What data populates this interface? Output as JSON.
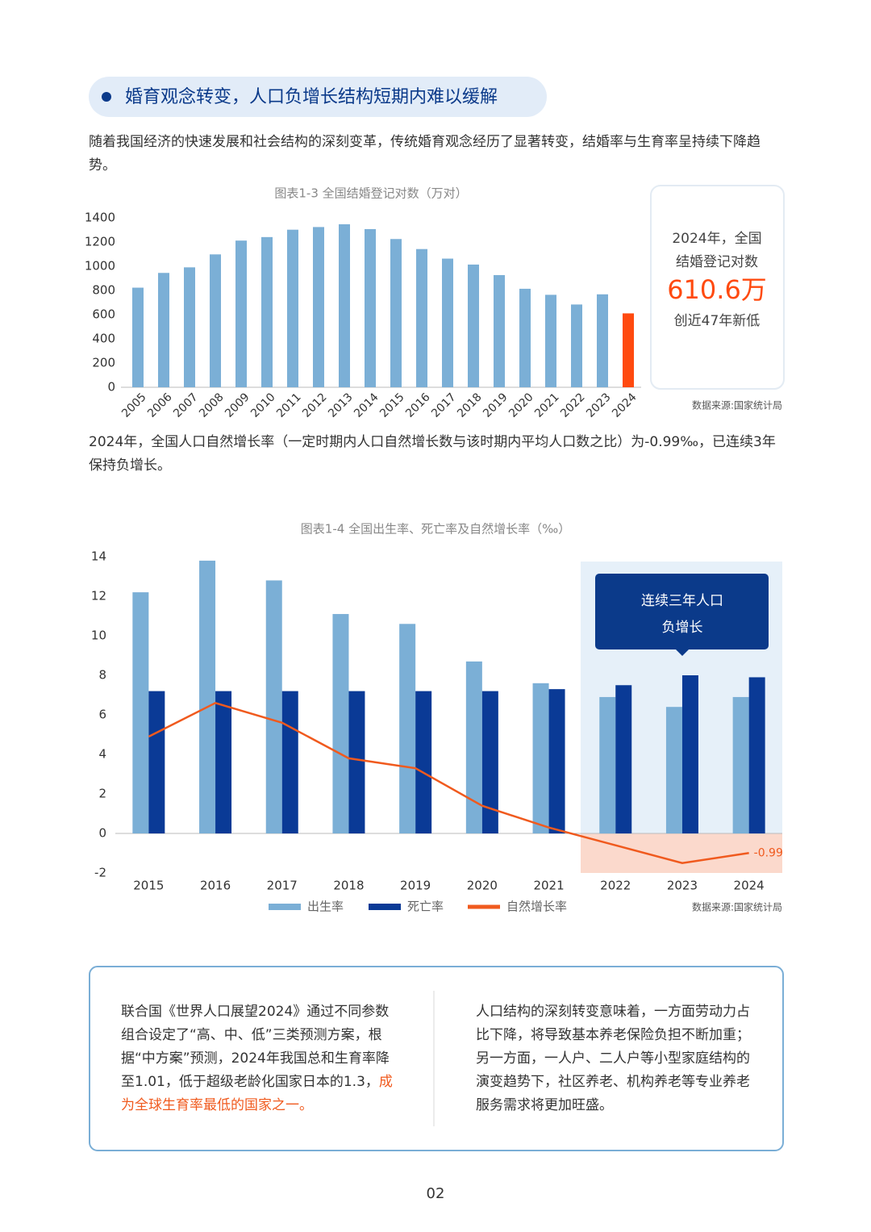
{
  "heading": "婚育观念转变，人口负增长结构短期内难以缓解",
  "intro": "随着我国经济的快速发展和社会结构的深刻变革，传统婚育观念经历了显著转变，结婚率与生育率呈持续下降趋势。",
  "chart_data": [
    {
      "type": "bar",
      "title": "图表1-3 全国结婚登记对数（万对）",
      "source": "数据来源:国家统计局",
      "categories": [
        "2005",
        "2006",
        "2007",
        "2008",
        "2009",
        "2010",
        "2011",
        "2012",
        "2013",
        "2014",
        "2015",
        "2016",
        "2017",
        "2018",
        "2019",
        "2020",
        "2021",
        "2022",
        "2023",
        "2024"
      ],
      "values": [
        823,
        945,
        991,
        1098,
        1212,
        1241,
        1302,
        1324,
        1347,
        1307,
        1225,
        1142,
        1063,
        1014,
        927,
        814,
        764,
        684,
        768,
        610.6
      ],
      "colors": [
        "#7bafd6",
        "#7bafd6",
        "#7bafd6",
        "#7bafd6",
        "#7bafd6",
        "#7bafd6",
        "#7bafd6",
        "#7bafd6",
        "#7bafd6",
        "#7bafd6",
        "#7bafd6",
        "#7bafd6",
        "#7bafd6",
        "#7bafd6",
        "#7bafd6",
        "#7bafd6",
        "#7bafd6",
        "#7bafd6",
        "#7bafd6",
        "#ff4a0f"
      ],
      "ylim": [
        0,
        1400
      ],
      "yticks": [
        0,
        200,
        400,
        600,
        800,
        1000,
        1200,
        1400
      ],
      "grid": false
    },
    {
      "type": "combo",
      "title": "图表1-4 全国出生率、死亡率及自然增长率（‰）",
      "source": "数据来源:国家统计局",
      "categories": [
        "2015",
        "2016",
        "2017",
        "2018",
        "2019",
        "2020",
        "2021",
        "2022",
        "2023",
        "2024"
      ],
      "series": [
        {
          "name": "出生率",
          "type": "bar",
          "color": "#7bafd6",
          "values": [
            12.2,
            13.8,
            12.8,
            11.1,
            10.6,
            8.7,
            7.6,
            6.9,
            6.4,
            6.9
          ]
        },
        {
          "name": "死亡率",
          "type": "bar",
          "color": "#0a3a96",
          "values": [
            7.2,
            7.2,
            7.2,
            7.2,
            7.2,
            7.2,
            7.3,
            7.5,
            8.0,
            7.9
          ]
        },
        {
          "name": "自然增长率",
          "type": "line",
          "color": "#f05a1e",
          "values": [
            4.9,
            6.6,
            5.6,
            3.8,
            3.3,
            1.4,
            0.3,
            -0.6,
            -1.5,
            -0.99
          ]
        }
      ],
      "annotation": [
        "连续三年人口",
        "负增长"
      ],
      "ylim": [
        -2,
        14
      ],
      "yticks": [
        -2,
        0,
        2,
        4,
        6,
        8,
        10,
        12,
        14
      ],
      "grid": false
    }
  ],
  "callout": [
    "2024年，全国",
    "结婚登记对数",
    "610.6万",
    "创近47年新低"
  ],
  "paragraph": "2024年，全国人口自然增长率（一定时期内人口自然增长数与该时期内平均人口数之比）为-0.99‰，已连续3年保持负增长。",
  "summary": {
    "left": "联合国《世界人口展望2024》通过不同参数组合设定了“高、中、低”三类预测方案，根据“中方案”预测，2024年我国总和生育率降至1.01，低于超级老龄化国家日本的1.3，",
    "left_emphasis": "成为全球生育率最低的国家之一。",
    "right": "人口结构的深刻转变意味着，一方面劳动力占比下降，将导致基本养老保险负担不断加重；另一方面，一人户、二人户等小型家庭结构的演变趋势下，社区养老、机构养老等专业养老服务需求将更加旺盛。"
  },
  "page_number": "02"
}
